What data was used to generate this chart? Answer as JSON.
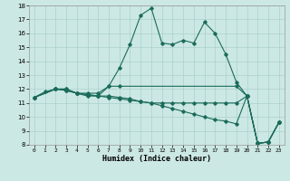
{
  "xlabel": "Humidex (Indice chaleur)",
  "bg_color": "#cce8e4",
  "grid_color": "#aad0cc",
  "line_color": "#1a6b5a",
  "xlim": [
    -0.5,
    23.5
  ],
  "ylim": [
    8,
    18
  ],
  "xticks": [
    0,
    1,
    2,
    3,
    4,
    5,
    6,
    7,
    8,
    9,
    10,
    11,
    12,
    13,
    14,
    15,
    16,
    17,
    18,
    19,
    20,
    21,
    22,
    23
  ],
  "yticks": [
    8,
    9,
    10,
    11,
    12,
    13,
    14,
    15,
    16,
    17,
    18
  ],
  "s1_x": [
    0,
    1,
    2,
    3,
    4,
    5,
    6,
    7,
    8,
    9,
    10,
    11,
    12,
    13,
    14,
    15,
    16,
    17,
    18,
    19,
    20,
    21,
    22,
    23
  ],
  "s1_y": [
    11.4,
    11.8,
    12.0,
    12.0,
    11.7,
    11.5,
    11.5,
    12.2,
    13.5,
    15.2,
    17.3,
    17.8,
    15.3,
    15.2,
    15.5,
    15.3,
    16.8,
    16.0,
    14.5,
    12.5,
    11.5,
    8.1,
    8.2,
    9.6
  ],
  "s2_x": [
    0,
    2,
    3,
    4,
    5,
    6,
    7,
    8,
    19,
    20,
    21,
    22,
    23
  ],
  "s2_y": [
    11.4,
    12.0,
    12.0,
    11.7,
    11.7,
    11.7,
    12.2,
    12.2,
    12.2,
    11.5,
    8.1,
    8.2,
    9.6
  ],
  "s3_x": [
    0,
    2,
    3,
    4,
    5,
    6,
    7,
    8,
    9,
    10,
    11,
    12,
    13,
    14,
    15,
    16,
    17,
    18,
    19,
    20,
    21,
    22,
    23
  ],
  "s3_y": [
    11.4,
    12.0,
    11.9,
    11.7,
    11.6,
    11.5,
    11.5,
    11.4,
    11.3,
    11.1,
    11.0,
    10.8,
    10.6,
    10.4,
    10.2,
    10.0,
    9.8,
    9.7,
    9.5,
    11.5,
    8.1,
    8.2,
    9.6
  ],
  "s4_x": [
    0,
    2,
    3,
    4,
    5,
    6,
    7,
    8,
    9,
    10,
    11,
    12,
    13,
    14,
    15,
    16,
    17,
    18,
    19,
    20,
    21,
    22,
    23
  ],
  "s4_y": [
    11.4,
    12.0,
    11.9,
    11.7,
    11.6,
    11.5,
    11.4,
    11.3,
    11.2,
    11.1,
    11.0,
    11.0,
    11.0,
    11.0,
    11.0,
    11.0,
    11.0,
    11.0,
    11.0,
    11.5,
    8.1,
    8.2,
    9.6
  ]
}
